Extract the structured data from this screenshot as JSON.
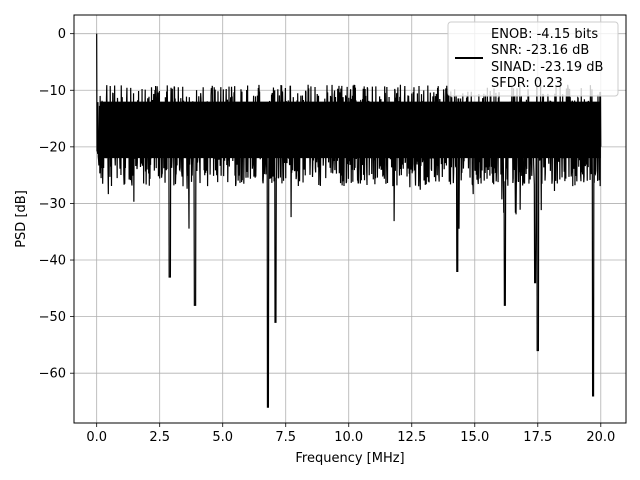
{
  "chart_data": {
    "type": "line",
    "xlabel": "Frequency [MHz]",
    "ylabel": "PSD [dB]",
    "xlim": [
      -0.9,
      21.0
    ],
    "ylim": [
      -68.8,
      3.3
    ],
    "xticks": [
      0.0,
      2.5,
      5.0,
      7.5,
      10.0,
      12.5,
      15.0,
      17.5,
      20.0
    ],
    "xtick_labels": [
      "0.0",
      "2.5",
      "5.0",
      "7.5",
      "10.0",
      "12.5",
      "15.0",
      "17.5",
      "20.0"
    ],
    "yticks": [
      0,
      -10,
      -20,
      -30,
      -40,
      -50,
      -60
    ],
    "ytick_labels": [
      "0",
      "−10",
      "−20",
      "−30",
      "−40",
      "−50",
      "−60"
    ],
    "grid": true,
    "legend_placement": "upper-right",
    "line_color": "#000000",
    "series": [
      {
        "legend_lines": [
          "ENOB: -4.15 bits",
          "SNR: -23.16 dB",
          "SINAD: -23.19 dB",
          "SFDR: 0.23"
        ],
        "x": [
          0.0,
          0.02,
          0.05,
          0.1,
          0.2,
          0.3,
          0.5,
          1.0,
          1.5,
          2.0,
          2.5,
          2.9,
          3.0,
          3.5,
          3.9,
          4.0,
          4.5,
          5.0,
          5.5,
          6.0,
          6.5,
          6.8,
          7.0,
          7.1,
          7.5,
          8.0,
          8.5,
          9.0,
          9.5,
          10.0,
          10.5,
          11.0,
          11.5,
          12.0,
          12.5,
          13.0,
          13.5,
          14.0,
          14.3,
          14.5,
          15.0,
          15.5,
          16.0,
          16.2,
          16.5,
          17.0,
          17.4,
          17.5,
          18.0,
          18.5,
          19.0,
          19.5,
          19.7,
          20.0
        ],
        "y": [
          0.0,
          -8.0,
          -12.0,
          -16.0,
          -14.0,
          -20.0,
          -15.0,
          -18.0,
          -17.0,
          -19.0,
          -16.0,
          -43.0,
          -18.0,
          -15.0,
          -48.0,
          -17.0,
          -19.0,
          -16.0,
          -18.0,
          -15.0,
          -17.0,
          -66.0,
          -18.0,
          -51.0,
          -16.0,
          -19.0,
          -15.0,
          -17.0,
          -18.0,
          -16.0,
          -19.0,
          -17.0,
          -15.0,
          -18.0,
          -16.0,
          -17.0,
          -19.0,
          -15.0,
          -42.0,
          -18.0,
          -16.0,
          -17.0,
          -19.0,
          -48.0,
          -16.0,
          -18.0,
          -44.0,
          -56.0,
          -17.0,
          -15.0,
          -18.0,
          -16.0,
          -64.0,
          -18.0
        ]
      }
    ]
  }
}
